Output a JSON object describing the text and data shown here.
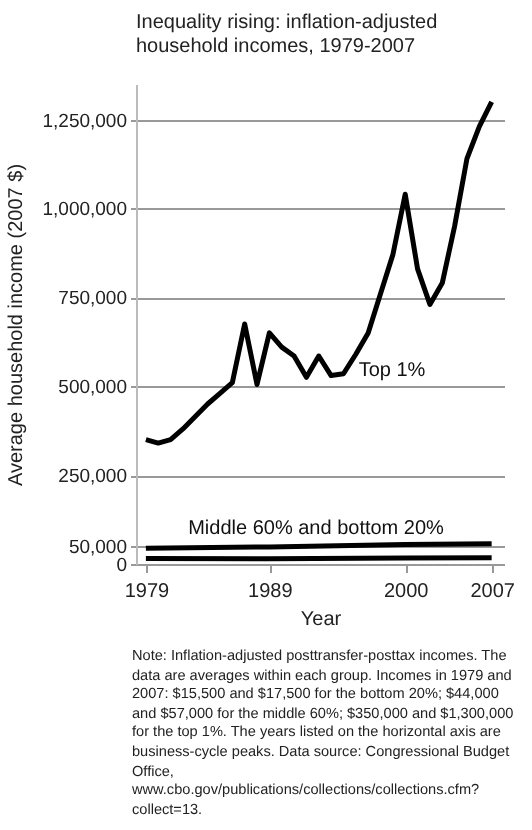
{
  "chart_data": {
    "type": "line",
    "title": "Inequality rising: inflation-adjusted household incomes, 1979-2007",
    "xlabel": "Year",
    "ylabel": "Average household income (2007 $)",
    "x": [
      1979,
      1980,
      1981,
      1982,
      1983,
      1984,
      1985,
      1986,
      1987,
      1988,
      1989,
      1990,
      1991,
      1992,
      1993,
      1994,
      1995,
      1996,
      1997,
      1998,
      1999,
      2000,
      2001,
      2002,
      2003,
      2004,
      2005,
      2006,
      2007
    ],
    "series": [
      {
        "color": "#000000",
        "values": [
          350000,
          340000,
          350000,
          380000,
          415000,
          450000,
          480000,
          510000,
          675000,
          505000,
          650000,
          610000,
          585000,
          525000,
          585000,
          530000,
          535000,
          590000,
          650000,
          760000,
          870000,
          1040000,
          830000,
          730000,
          790000,
          950000,
          1140000,
          1230000,
          1300000
        ]
      },
      {
        "color": "#000000",
        "x": [
          1979,
          1989,
          2000,
          2007
        ],
        "values": [
          44000,
          48000,
          55000,
          57000
        ]
      },
      {
        "color": "#000000",
        "x": [
          1979,
          1989,
          2000,
          2007
        ],
        "values": [
          15500,
          15000,
          17000,
          17500
        ]
      }
    ],
    "xlim": [
      1978.2,
      2008
    ],
    "xticks": [
      1979,
      1989,
      2000,
      2007
    ],
    "ylim": [
      0,
      1350000
    ],
    "yticks": [
      0,
      {
        "value": 50000,
        "label": "50,000"
      },
      {
        "value": 250000,
        "label": "250,000"
      },
      {
        "value": 500000,
        "label": "500,000"
      },
      {
        "value": 750000,
        "label": "750,000"
      },
      {
        "value": 1000000,
        "label": "1,000,000"
      },
      {
        "value": 1250000,
        "label": "1,250,000"
      }
    ],
    "grid": "y",
    "marker": "none",
    "line_style": "solid",
    "annotations": [
      "Top 1%",
      "Middle 60% and bottom 20%",
      "Note: Inflation-adjusted posttransfer-posttax incomes. The data are averages within each group. Incomes in 1979 and 2007: $15,500 and $17,500 for the bottom 20%; $44,000 and $57,000 for the middle 60%; $350,000 and $1,300,000 for the top 1%. The years listed on the horizontal axis are business-cycle peaks. Data source: Congressional Budget Office, www.cbo.gov/publications/collections/collections.cfm?collect=13."
    ]
  }
}
